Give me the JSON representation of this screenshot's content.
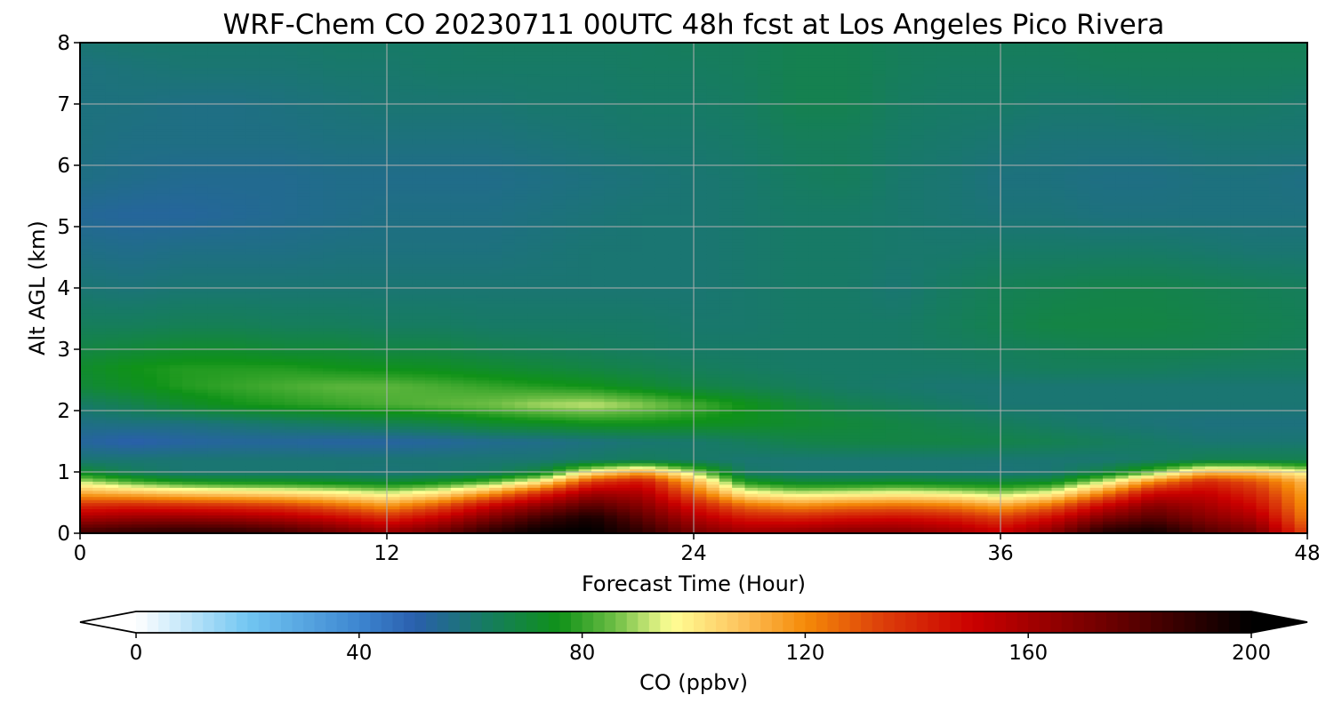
{
  "chart_data": {
    "type": "heatmap",
    "title": "WRF-Chem CO  20230711 00UTC 48h fcst at Los Angeles Pico Rivera",
    "xlabel": "Forecast Time (Hour)",
    "ylabel": "Alt AGL (km)",
    "xlim": [
      0,
      48
    ],
    "ylim": [
      0,
      8
    ],
    "x_ticks": [
      "0",
      "12",
      "24",
      "36",
      "48"
    ],
    "y_ticks": [
      "0",
      "1",
      "2",
      "3",
      "4",
      "5",
      "6",
      "7",
      "8"
    ],
    "grid": true,
    "colorbar": {
      "label": "CO  (ppbv)",
      "range": [
        0,
        200
      ],
      "ticks": [
        "0",
        "40",
        "80",
        "120",
        "160",
        "200"
      ],
      "extend": "both",
      "stops": [
        {
          "v": 0,
          "c": "#ffffff"
        },
        {
          "v": 20,
          "c": "#72c6f2"
        },
        {
          "v": 40,
          "c": "#3d86d0"
        },
        {
          "v": 50,
          "c": "#2a5fad"
        },
        {
          "v": 62,
          "c": "#177a66"
        },
        {
          "v": 76,
          "c": "#0f9218"
        },
        {
          "v": 86,
          "c": "#6fbe45"
        },
        {
          "v": 96,
          "c": "#ffff95"
        },
        {
          "v": 108,
          "c": "#fdc560"
        },
        {
          "v": 120,
          "c": "#f58a08"
        },
        {
          "v": 134,
          "c": "#dc3e0a"
        },
        {
          "v": 150,
          "c": "#cb0000"
        },
        {
          "v": 175,
          "c": "#6a0000"
        },
        {
          "v": 200,
          "c": "#000000"
        }
      ]
    },
    "hours": [
      0,
      2,
      4,
      6,
      8,
      10,
      12,
      14,
      16,
      18,
      20,
      22,
      24,
      26,
      28,
      30,
      32,
      34,
      36,
      38,
      40,
      42,
      44,
      46,
      48
    ],
    "altitudes_km": [
      0.05,
      0.25,
      0.45,
      0.65,
      0.85,
      1.0,
      1.2,
      1.5,
      1.8,
      2.1,
      2.4,
      2.7,
      3.0,
      3.4,
      4.0,
      4.6,
      5.2,
      5.8,
      6.4,
      7.0,
      7.6,
      8.0
    ],
    "co_ppbv": [
      [
        182,
        186,
        188,
        187,
        182,
        172,
        162,
        172,
        188,
        198,
        200,
        188,
        170,
        160,
        162,
        166,
        166,
        160,
        150,
        165,
        190,
        195,
        180,
        170,
        130
      ],
      [
        160,
        164,
        165,
        163,
        158,
        150,
        140,
        152,
        170,
        185,
        195,
        178,
        158,
        144,
        142,
        146,
        148,
        144,
        135,
        148,
        170,
        180,
        168,
        158,
        122
      ],
      [
        140,
        142,
        140,
        138,
        135,
        127,
        118,
        130,
        150,
        166,
        180,
        168,
        145,
        126,
        120,
        124,
        126,
        123,
        115,
        126,
        150,
        168,
        160,
        148,
        118
      ],
      [
        115,
        112,
        108,
        106,
        104,
        100,
        95,
        102,
        118,
        140,
        162,
        158,
        128,
        100,
        94,
        96,
        98,
        96,
        90,
        98,
        122,
        150,
        152,
        140,
        115
      ],
      [
        92,
        82,
        76,
        74,
        74,
        72,
        70,
        74,
        82,
        100,
        135,
        145,
        112,
        76,
        70,
        70,
        72,
        70,
        70,
        72,
        92,
        120,
        140,
        130,
        110
      ],
      [
        72,
        64,
        60,
        60,
        60,
        60,
        59,
        60,
        62,
        70,
        100,
        115,
        90,
        62,
        60,
        60,
        60,
        60,
        59,
        60,
        68,
        85,
        110,
        108,
        96
      ],
      [
        60,
        60,
        60,
        60,
        60,
        60,
        60,
        60,
        60,
        60,
        62,
        64,
        62,
        60,
        60,
        60,
        60,
        60,
        60,
        60,
        60,
        62,
        66,
        66,
        66
      ],
      [
        53,
        50,
        52,
        53,
        53,
        52,
        52,
        53,
        55,
        56,
        58,
        60,
        61,
        64,
        67,
        68,
        68,
        68,
        67,
        66,
        64,
        62,
        60,
        60,
        60
      ],
      [
        57,
        58,
        58,
        60,
        62,
        64,
        66,
        68,
        72,
        74,
        76,
        76,
        75,
        74,
        72,
        70,
        68,
        66,
        64,
        62,
        60,
        59,
        58,
        58,
        58
      ],
      [
        62,
        66,
        72,
        76,
        78,
        80,
        82,
        84,
        86,
        90,
        92,
        88,
        82,
        76,
        70,
        66,
        64,
        62,
        60,
        60,
        60,
        60,
        60,
        60,
        60
      ],
      [
        70,
        74,
        78,
        80,
        82,
        84,
        84,
        82,
        80,
        78,
        76,
        72,
        68,
        66,
        64,
        62,
        61,
        60,
        60,
        60,
        60,
        60,
        60,
        60,
        60
      ],
      [
        72,
        76,
        78,
        78,
        78,
        76,
        75,
        74,
        72,
        70,
        68,
        66,
        64,
        63,
        62,
        62,
        62,
        62,
        63,
        64,
        64,
        64,
        63,
        63,
        63
      ],
      [
        68,
        70,
        72,
        72,
        70,
        70,
        68,
        68,
        66,
        65,
        64,
        63,
        62,
        62,
        62,
        62,
        62,
        63,
        64,
        65,
        66,
        66,
        66,
        65,
        64
      ],
      [
        64,
        64,
        65,
        65,
        64,
        64,
        63,
        63,
        62,
        62,
        62,
        62,
        61,
        61,
        62,
        62,
        62,
        64,
        66,
        68,
        68,
        68,
        67,
        66,
        65
      ],
      [
        60,
        59,
        60,
        60,
        60,
        60,
        60,
        60,
        60,
        60,
        60,
        60,
        60,
        61,
        62,
        62,
        60,
        63,
        65,
        66,
        67,
        67,
        66,
        65,
        64
      ],
      [
        57,
        56,
        57,
        57,
        57,
        58,
        58,
        58,
        58,
        59,
        60,
        60,
        60,
        61,
        62,
        62,
        61,
        61,
        62,
        62,
        62,
        62,
        61,
        60,
        60
      ],
      [
        54,
        53,
        53,
        54,
        55,
        56,
        57,
        57,
        57,
        58,
        59,
        60,
        60,
        61,
        62,
        62,
        61,
        60,
        59,
        59,
        58,
        58,
        58,
        58,
        58
      ],
      [
        57,
        56,
        55,
        55,
        55,
        56,
        56,
        56,
        56,
        57,
        58,
        59,
        60,
        61,
        63,
        64,
        61,
        60,
        58,
        58,
        57,
        57,
        58,
        58,
        57
      ],
      [
        58,
        57,
        57,
        57,
        57,
        58,
        58,
        58,
        58,
        59,
        60,
        61,
        61,
        62,
        64,
        64,
        62,
        61,
        60,
        59,
        59,
        59,
        60,
        60,
        60
      ],
      [
        58,
        58,
        57,
        57,
        58,
        59,
        60,
        60,
        60,
        61,
        61,
        62,
        62,
        63,
        66,
        66,
        63,
        62,
        62,
        61,
        61,
        62,
        62,
        62,
        61
      ],
      [
        58,
        59,
        60,
        60,
        60,
        61,
        61,
        62,
        62,
        62,
        62,
        63,
        63,
        64,
        66,
        66,
        64,
        63,
        63,
        63,
        64,
        64,
        64,
        64,
        64
      ],
      [
        60,
        61,
        61,
        61,
        61,
        62,
        62,
        62,
        63,
        63,
        63,
        63,
        64,
        64,
        66,
        66,
        64,
        64,
        64,
        64,
        65,
        65,
        65,
        65,
        65
      ]
    ]
  }
}
